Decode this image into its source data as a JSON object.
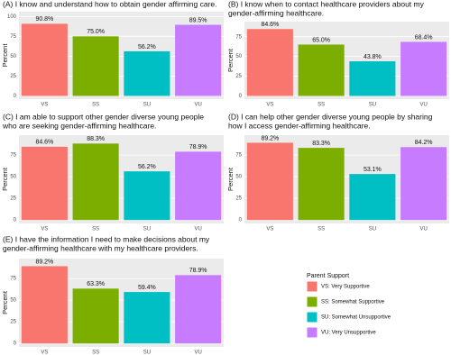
{
  "chart_data": [
    {
      "type": "bar",
      "title": [
        "(A) I know and understand how to obtain gender affirming care."
      ],
      "ylabel": "Percent",
      "categories": [
        "VS",
        "SS",
        "SU",
        "VU"
      ],
      "values": [
        90.8,
        75.0,
        56.2,
        89.5
      ],
      "value_labels": [
        "90.8%",
        "75.0%",
        "56.2%",
        "89.5%"
      ],
      "ylim": [
        -4,
        106
      ],
      "yticks": [
        0,
        25,
        50,
        75,
        100
      ]
    },
    {
      "type": "bar",
      "title": [
        "(B) I know when to contact healthcare providers about my",
        "gender-affirming healthcare."
      ],
      "ylabel": "Percent",
      "categories": [
        "VS",
        "SS",
        "SU",
        "VU"
      ],
      "values": [
        84.6,
        65.0,
        43.8,
        68.4
      ],
      "value_labels": [
        "84.6%",
        "65.0%",
        "43.8%",
        "68.4%"
      ],
      "ylim": [
        -4,
        94
      ],
      "yticks": [
        0,
        25,
        50,
        75
      ]
    },
    {
      "type": "bar",
      "title": [
        "(C) I am able to support other gender diverse young people",
        "who are seeking gender-affirming healthcare."
      ],
      "ylabel": "Percent",
      "categories": [
        "VS",
        "SS",
        "SU",
        "VU"
      ],
      "values": [
        84.6,
        88.3,
        56.2,
        78.9
      ],
      "value_labels": [
        "84.6%",
        "88.3%",
        "56.2%",
        "78.9%"
      ],
      "ylim": [
        -4,
        98
      ],
      "yticks": [
        0,
        25,
        50,
        75
      ]
    },
    {
      "type": "bar",
      "title": [
        "(D) I can help other gender diverse young people by sharing",
        "how I access gender-affirming healthcare."
      ],
      "ylabel": "Percent",
      "categories": [
        "VS",
        "SS",
        "SU",
        "VU"
      ],
      "values": [
        89.2,
        83.3,
        53.1,
        84.2
      ],
      "value_labels": [
        "89.2%",
        "83.3%",
        "53.1%",
        "84.2%"
      ],
      "ylim": [
        -4,
        98
      ],
      "yticks": [
        0,
        25,
        50,
        75
      ]
    },
    {
      "type": "bar",
      "title": [
        "(E) I have the information I need to make decisions about my",
        "gender-affirming healthcare with my healthcare providers."
      ],
      "ylabel": "Percent",
      "categories": [
        "VS",
        "SS",
        "SU",
        "VU"
      ],
      "values": [
        89.2,
        63.3,
        59.4,
        78.9
      ],
      "value_labels": [
        "89.2%",
        "63.3%",
        "59.4%",
        "78.9%"
      ],
      "ylim": [
        -4,
        98
      ],
      "yticks": [
        0,
        25,
        50,
        75
      ]
    }
  ],
  "legend": {
    "title": "Parent Support",
    "entries": [
      "VS: Very Supportive",
      "SS: Somewhat Supportive",
      "SU: Somewhat Unsupportive",
      "VU: Very Unsupportive"
    ],
    "colors": [
      "#f8766d",
      "#7cae00",
      "#00bfc4",
      "#c77cff"
    ]
  }
}
